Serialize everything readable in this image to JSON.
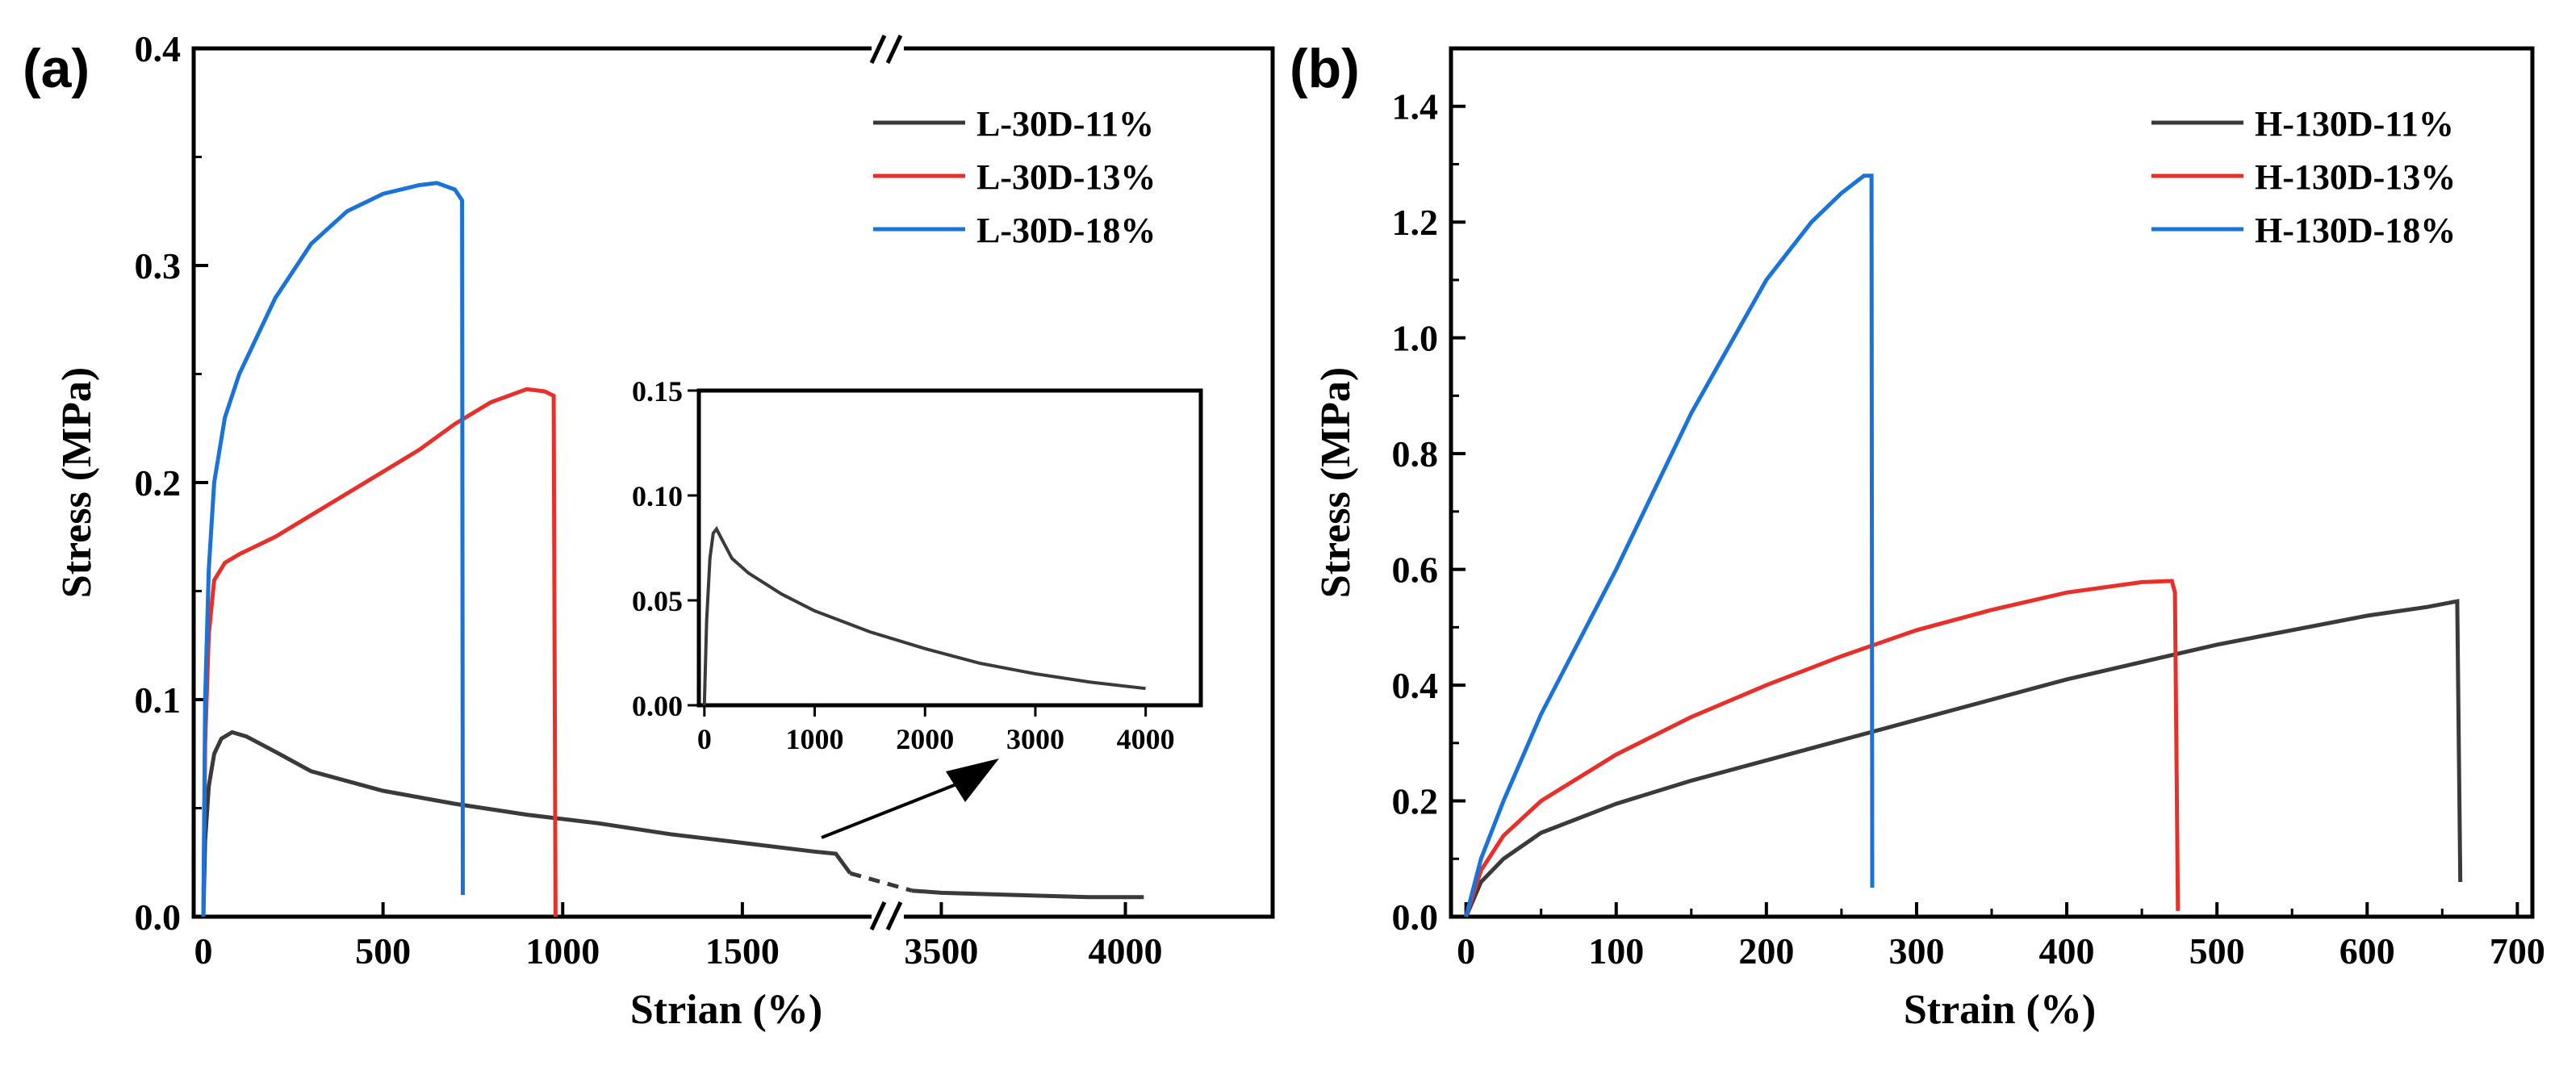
{
  "chart_data": [
    {
      "panel_label": "(a)",
      "type": "line",
      "xlabel": "Strian (%)",
      "ylabel": "Stress (MPa)",
      "xaxis": {
        "broken": true,
        "segment1_range": [
          0,
          1900
        ],
        "segment2_range": [
          3350,
          4400
        ],
        "ticks": [
          {
            "value": 0,
            "label": "0"
          },
          {
            "value": 500,
            "label": "500"
          },
          {
            "value": 1000,
            "label": "1000"
          },
          {
            "value": 1500,
            "label": "1500"
          },
          {
            "value": 3500,
            "label": "3500"
          },
          {
            "value": 4000,
            "label": "4000"
          }
        ]
      },
      "ylim": [
        0,
        0.4
      ],
      "yticks": [
        {
          "value": 0,
          "label": "0.0"
        },
        {
          "value": 0.1,
          "label": "0.1"
        },
        {
          "value": 0.2,
          "label": "0.2"
        },
        {
          "value": 0.3,
          "label": "0.3"
        },
        {
          "value": 0.4,
          "label": "0.4"
        }
      ],
      "legend_position": "top-right",
      "series": [
        {
          "name": "L-30D-11%",
          "color": "#3a3a3a",
          "points": [
            [
              0,
              0
            ],
            [
              5,
              0.035
            ],
            [
              15,
              0.06
            ],
            [
              30,
              0.075
            ],
            [
              50,
              0.082
            ],
            [
              80,
              0.085
            ],
            [
              120,
              0.083
            ],
            [
              200,
              0.076
            ],
            [
              300,
              0.067
            ],
            [
              500,
              0.058
            ],
            [
              700,
              0.052
            ],
            [
              900,
              0.047
            ],
            [
              1100,
              0.043
            ],
            [
              1300,
              0.038
            ],
            [
              1500,
              0.034
            ],
            [
              1700,
              0.03
            ],
            [
              1760,
              0.029
            ],
            [
              1800,
              0.02
            ],
            [
              3420,
              0.012
            ],
            [
              3500,
              0.011
            ],
            [
              3700,
              0.01
            ],
            [
              3900,
              0.009
            ],
            [
              4050,
              0.009
            ]
          ]
        },
        {
          "name": "L-30D-13%",
          "color": "#e8302a",
          "points": [
            [
              0,
              0
            ],
            [
              5,
              0.08
            ],
            [
              15,
              0.13
            ],
            [
              30,
              0.155
            ],
            [
              60,
              0.163
            ],
            [
              100,
              0.167
            ],
            [
              200,
              0.175
            ],
            [
              300,
              0.185
            ],
            [
              400,
              0.195
            ],
            [
              500,
              0.205
            ],
            [
              600,
              0.215
            ],
            [
              700,
              0.227
            ],
            [
              800,
              0.237
            ],
            [
              900,
              0.243
            ],
            [
              950,
              0.242
            ],
            [
              975,
              0.24
            ],
            [
              980,
              0.0
            ]
          ]
        },
        {
          "name": "L-30D-18%",
          "color": "#1a73d8",
          "points": [
            [
              0,
              0
            ],
            [
              5,
              0.1
            ],
            [
              15,
              0.16
            ],
            [
              30,
              0.2
            ],
            [
              60,
              0.23
            ],
            [
              100,
              0.25
            ],
            [
              200,
              0.285
            ],
            [
              300,
              0.31
            ],
            [
              400,
              0.325
            ],
            [
              500,
              0.333
            ],
            [
              600,
              0.337
            ],
            [
              650,
              0.338
            ],
            [
              700,
              0.335
            ],
            [
              720,
              0.33
            ],
            [
              722,
              0.01
            ]
          ]
        }
      ],
      "inset": {
        "xlim": [
          -50,
          4500
        ],
        "ylim": [
          0,
          0.15
        ],
        "xticks": [
          {
            "value": 0,
            "label": "0"
          },
          {
            "value": 1000,
            "label": "1000"
          },
          {
            "value": 2000,
            "label": "2000"
          },
          {
            "value": 3000,
            "label": "3000"
          },
          {
            "value": 4000,
            "label": "4000"
          }
        ],
        "yticks": [
          {
            "value": 0,
            "label": "0.00"
          },
          {
            "value": 0.05,
            "label": "0.05"
          },
          {
            "value": 0.1,
            "label": "0.10"
          },
          {
            "value": 0.15,
            "label": "0.15"
          }
        ],
        "series": {
          "name": "L-30D-11%",
          "color": "#3a3a3a",
          "points": [
            [
              0,
              0
            ],
            [
              20,
              0.04
            ],
            [
              50,
              0.07
            ],
            [
              80,
              0.082
            ],
            [
              110,
              0.084
            ],
            [
              150,
              0.08
            ],
            [
              250,
              0.07
            ],
            [
              400,
              0.063
            ],
            [
              700,
              0.053
            ],
            [
              1000,
              0.045
            ],
            [
              1500,
              0.035
            ],
            [
              2000,
              0.027
            ],
            [
              2500,
              0.02
            ],
            [
              3000,
              0.015
            ],
            [
              3500,
              0.011
            ],
            [
              4000,
              0.008
            ]
          ]
        }
      }
    },
    {
      "panel_label": "(b)",
      "type": "line",
      "xlabel": "Strain (%)",
      "ylabel": "Stress (MPa)",
      "xlim": [
        -10,
        710
      ],
      "ylim": [
        0,
        1.5
      ],
      "xticks": [
        {
          "value": 0,
          "label": "0"
        },
        {
          "value": 100,
          "label": "100"
        },
        {
          "value": 200,
          "label": "200"
        },
        {
          "value": 300,
          "label": "300"
        },
        {
          "value": 400,
          "label": "400"
        },
        {
          "value": 500,
          "label": "500"
        },
        {
          "value": 600,
          "label": "600"
        },
        {
          "value": 700,
          "label": "700"
        }
      ],
      "yticks": [
        {
          "value": 0,
          "label": "0.0"
        },
        {
          "value": 0.2,
          "label": "0.2"
        },
        {
          "value": 0.4,
          "label": "0.4"
        },
        {
          "value": 0.6,
          "label": "0.6"
        },
        {
          "value": 0.8,
          "label": "0.8"
        },
        {
          "value": 1.0,
          "label": "1.0"
        },
        {
          "value": 1.2,
          "label": "1.2"
        },
        {
          "value": 1.4,
          "label": "1.4"
        }
      ],
      "legend_position": "top-right",
      "series": [
        {
          "name": "H-130D-11%",
          "color": "#3a3a3a",
          "points": [
            [
              0,
              0
            ],
            [
              10,
              0.06
            ],
            [
              25,
              0.1
            ],
            [
              50,
              0.145
            ],
            [
              100,
              0.195
            ],
            [
              150,
              0.235
            ],
            [
              200,
              0.27
            ],
            [
              250,
              0.305
            ],
            [
              300,
              0.34
            ],
            [
              350,
              0.375
            ],
            [
              400,
              0.41
            ],
            [
              450,
              0.44
            ],
            [
              500,
              0.47
            ],
            [
              550,
              0.495
            ],
            [
              600,
              0.52
            ],
            [
              640,
              0.535
            ],
            [
              660,
              0.545
            ],
            [
              662,
              0.06
            ]
          ]
        },
        {
          "name": "H-130D-13%",
          "color": "#e8302a",
          "points": [
            [
              0,
              0
            ],
            [
              10,
              0.08
            ],
            [
              25,
              0.14
            ],
            [
              50,
              0.2
            ],
            [
              100,
              0.28
            ],
            [
              150,
              0.345
            ],
            [
              200,
              0.4
            ],
            [
              250,
              0.45
            ],
            [
              300,
              0.495
            ],
            [
              350,
              0.53
            ],
            [
              400,
              0.56
            ],
            [
              450,
              0.578
            ],
            [
              470,
              0.58
            ],
            [
              472,
              0.56
            ],
            [
              474,
              0.01
            ]
          ]
        },
        {
          "name": "H-130D-18%",
          "color": "#1a73d8",
          "points": [
            [
              0,
              0
            ],
            [
              10,
              0.1
            ],
            [
              25,
              0.2
            ],
            [
              50,
              0.35
            ],
            [
              100,
              0.6
            ],
            [
              150,
              0.87
            ],
            [
              200,
              1.1
            ],
            [
              230,
              1.2
            ],
            [
              250,
              1.25
            ],
            [
              265,
              1.28
            ],
            [
              270,
              1.28
            ],
            [
              270.5,
              0.05
            ]
          ]
        }
      ]
    }
  ]
}
